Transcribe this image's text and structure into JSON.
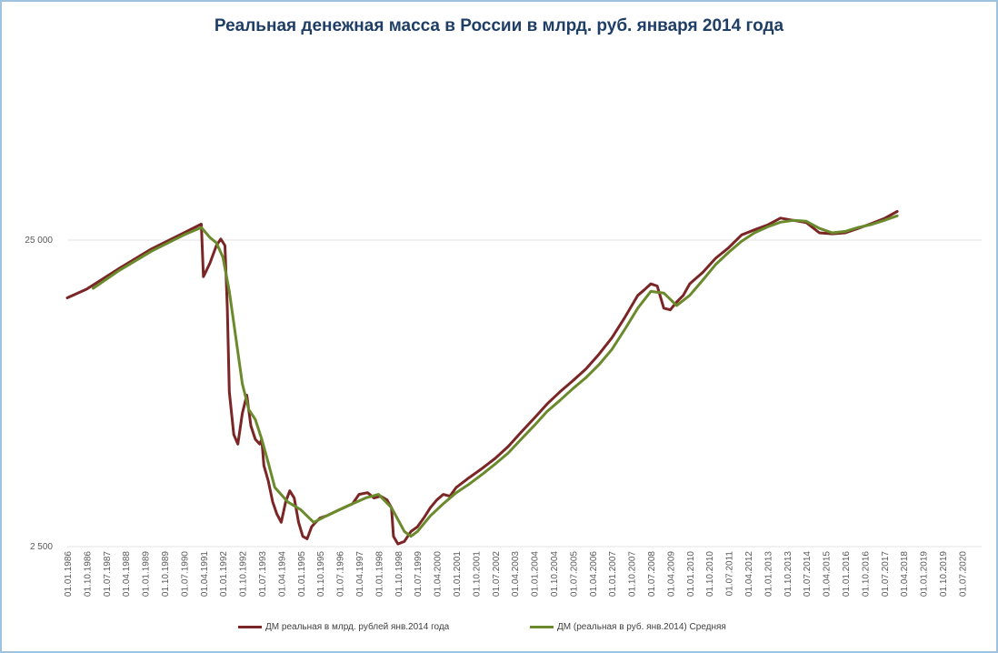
{
  "chart_data": {
    "type": "line",
    "title": "Реальная денежная масса в России в млрд. руб. января 2014 года",
    "xlabel": "",
    "ylabel": "",
    "y_scale": "log",
    "ylim": [
      2500,
      60000
    ],
    "y_ticks": [
      2500,
      25000
    ],
    "y_tick_labels": [
      "2 500",
      "25 000"
    ],
    "x_tick_labels": [
      "01.01.1986",
      "01.10.1986",
      "01.07.1987",
      "01.04.1988",
      "01.01.1989",
      "01.10.1989",
      "01.07.1990",
      "01.04.1991",
      "01.01.1992",
      "01.10.1992",
      "01.07.1993",
      "01.04.1994",
      "01.01.1995",
      "01.10.1995",
      "01.07.1996",
      "01.04.1997",
      "01.01.1998",
      "01.10.1998",
      "01.07.1999",
      "01.04.2000",
      "01.01.2001",
      "01.10.2001",
      "01.07.2002",
      "01.04.2003",
      "01.01.2004",
      "01.10.2004",
      "01.07.2005",
      "01.04.2006",
      "01.01.2007",
      "01.10.2007",
      "01.07.2008",
      "01.04.2009",
      "01.01.2010",
      "01.10.2010",
      "01.07.2011",
      "01.04.2012",
      "01.01.2013",
      "01.10.2013",
      "01.07.2014",
      "01.04.2015",
      "01.01.2016",
      "01.10.2016",
      "01.07.2017",
      "01.04.2018",
      "01.01.2019",
      "01.10.2019",
      "01.07.2020"
    ],
    "grid": "horizontal",
    "legend_position": "bottom",
    "series": [
      {
        "name": "ДМ реальная в млрд. рублей янв.2014  года",
        "color": "#7b2626",
        "points": [
          [
            1986.0,
            16200
          ],
          [
            1986.75,
            17300
          ],
          [
            1988.0,
            20200
          ],
          [
            1989.25,
            23400
          ],
          [
            1990.5,
            26400
          ],
          [
            1991.17,
            28200
          ],
          [
            1991.25,
            19000
          ],
          [
            1991.5,
            21000
          ],
          [
            1991.75,
            24000
          ],
          [
            1991.92,
            25200
          ],
          [
            1992.08,
            24000
          ],
          [
            1992.17,
            15000
          ],
          [
            1992.25,
            8000
          ],
          [
            1992.42,
            5800
          ],
          [
            1992.58,
            5400
          ],
          [
            1992.75,
            6800
          ],
          [
            1992.92,
            7800
          ],
          [
            1993.08,
            6200
          ],
          [
            1993.25,
            5600
          ],
          [
            1993.42,
            5400
          ],
          [
            1993.5,
            5600
          ],
          [
            1993.58,
            4600
          ],
          [
            1993.75,
            4100
          ],
          [
            1993.92,
            3500
          ],
          [
            1994.08,
            3200
          ],
          [
            1994.25,
            3000
          ],
          [
            1994.42,
            3500
          ],
          [
            1994.58,
            3800
          ],
          [
            1994.75,
            3600
          ],
          [
            1994.92,
            3000
          ],
          [
            1995.08,
            2700
          ],
          [
            1995.25,
            2650
          ],
          [
            1995.42,
            2900
          ],
          [
            1995.58,
            3000
          ],
          [
            1995.75,
            3100
          ],
          [
            1996.0,
            3150
          ],
          [
            1996.5,
            3300
          ],
          [
            1997.0,
            3450
          ],
          [
            1997.25,
            3700
          ],
          [
            1997.58,
            3750
          ],
          [
            1997.83,
            3600
          ],
          [
            1998.08,
            3650
          ],
          [
            1998.33,
            3550
          ],
          [
            1998.5,
            3350
          ],
          [
            1998.58,
            2700
          ],
          [
            1998.75,
            2550
          ],
          [
            1999.0,
            2600
          ],
          [
            1999.25,
            2800
          ],
          [
            1999.5,
            2900
          ],
          [
            1999.75,
            3100
          ],
          [
            2000.0,
            3350
          ],
          [
            2000.25,
            3550
          ],
          [
            2000.5,
            3700
          ],
          [
            2000.75,
            3650
          ],
          [
            2001.0,
            3900
          ],
          [
            2001.5,
            4200
          ],
          [
            2002.0,
            4500
          ],
          [
            2002.5,
            4850
          ],
          [
            2003.0,
            5300
          ],
          [
            2003.5,
            5900
          ],
          [
            2004.0,
            6550
          ],
          [
            2004.5,
            7300
          ],
          [
            2005.0,
            8000
          ],
          [
            2005.5,
            8700
          ],
          [
            2006.0,
            9500
          ],
          [
            2006.5,
            10600
          ],
          [
            2007.0,
            12000
          ],
          [
            2007.5,
            14000
          ],
          [
            2008.0,
            16500
          ],
          [
            2008.25,
            17200
          ],
          [
            2008.5,
            18000
          ],
          [
            2008.75,
            17700
          ],
          [
            2009.0,
            15000
          ],
          [
            2009.25,
            14800
          ],
          [
            2009.5,
            15700
          ],
          [
            2009.75,
            16500
          ],
          [
            2010.0,
            18000
          ],
          [
            2010.5,
            19600
          ],
          [
            2011.0,
            21800
          ],
          [
            2011.5,
            23600
          ],
          [
            2012.0,
            26000
          ],
          [
            2012.5,
            27000
          ],
          [
            2013.0,
            28000
          ],
          [
            2013.5,
            29500
          ],
          [
            2014.0,
            29000
          ],
          [
            2014.5,
            28500
          ],
          [
            2015.0,
            26400
          ],
          [
            2015.5,
            26200
          ],
          [
            2016.0,
            26400
          ],
          [
            2016.5,
            27300
          ],
          [
            2017.0,
            28300
          ],
          [
            2017.5,
            29400
          ],
          [
            2018.0,
            31000
          ]
        ]
      },
      {
        "name": "ДМ  (реальная в руб. янв.2014)  Средняя",
        "color": "#6a8a2c",
        "points": [
          [
            1987.0,
            17400
          ],
          [
            1988.0,
            19900
          ],
          [
            1989.25,
            23000
          ],
          [
            1990.5,
            26000
          ],
          [
            1991.17,
            27500
          ],
          [
            1991.5,
            25500
          ],
          [
            1991.75,
            24500
          ],
          [
            1992.0,
            22000
          ],
          [
            1992.25,
            17000
          ],
          [
            1992.5,
            12000
          ],
          [
            1992.75,
            8500
          ],
          [
            1993.0,
            7000
          ],
          [
            1993.25,
            6500
          ],
          [
            1993.5,
            5600
          ],
          [
            1993.75,
            4700
          ],
          [
            1994.0,
            3900
          ],
          [
            1994.5,
            3500
          ],
          [
            1995.0,
            3300
          ],
          [
            1995.5,
            3000
          ],
          [
            1996.0,
            3150
          ],
          [
            1996.5,
            3300
          ],
          [
            1997.0,
            3450
          ],
          [
            1997.5,
            3600
          ],
          [
            1998.0,
            3700
          ],
          [
            1998.5,
            3350
          ],
          [
            1999.0,
            2800
          ],
          [
            1999.25,
            2700
          ],
          [
            1999.5,
            2800
          ],
          [
            2000.0,
            3150
          ],
          [
            2000.5,
            3450
          ],
          [
            2001.0,
            3750
          ],
          [
            2001.5,
            4000
          ],
          [
            2002.0,
            4300
          ],
          [
            2002.5,
            4650
          ],
          [
            2003.0,
            5050
          ],
          [
            2003.5,
            5600
          ],
          [
            2004.0,
            6200
          ],
          [
            2004.5,
            6900
          ],
          [
            2005.0,
            7500
          ],
          [
            2005.5,
            8200
          ],
          [
            2006.0,
            8900
          ],
          [
            2006.5,
            9800
          ],
          [
            2007.0,
            11000
          ],
          [
            2007.5,
            12800
          ],
          [
            2008.0,
            15000
          ],
          [
            2008.5,
            17000
          ],
          [
            2009.0,
            16800
          ],
          [
            2009.5,
            15300
          ],
          [
            2010.0,
            16500
          ],
          [
            2010.5,
            18500
          ],
          [
            2011.0,
            20800
          ],
          [
            2011.5,
            22800
          ],
          [
            2012.0,
            24800
          ],
          [
            2012.5,
            26400
          ],
          [
            2013.0,
            27600
          ],
          [
            2013.5,
            28600
          ],
          [
            2014.0,
            29000
          ],
          [
            2014.5,
            28800
          ],
          [
            2015.0,
            27300
          ],
          [
            2015.5,
            26400
          ],
          [
            2016.0,
            26700
          ],
          [
            2016.5,
            27500
          ],
          [
            2017.0,
            28100
          ],
          [
            2017.5,
            29000
          ],
          [
            2018.0,
            30000
          ]
        ]
      }
    ]
  }
}
